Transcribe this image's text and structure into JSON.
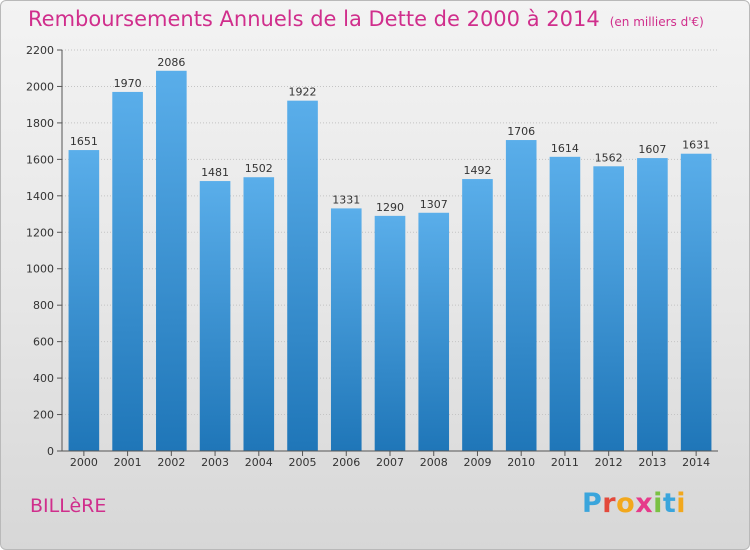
{
  "header": {
    "title": "Remboursements Annuels de la Dette de 2000 à 2014",
    "unit": "(en milliers d'€)"
  },
  "footer": {
    "commune": "BILLèRE",
    "logo_letters": [
      "P",
      "r",
      "o",
      "x",
      "i",
      "t",
      "i"
    ]
  },
  "colors": {
    "title": "#d02e8c",
    "bar_light": "#5aaeea",
    "bar_dark": "#1f76b8"
  },
  "chart_data": {
    "type": "bar",
    "title": "Remboursements Annuels de la Dette de 2000 à 2014",
    "xlabel": "",
    "ylabel": "",
    "categories": [
      "2000",
      "2001",
      "2002",
      "2003",
      "2004",
      "2005",
      "2006",
      "2007",
      "2008",
      "2009",
      "2010",
      "2011",
      "2012",
      "2013",
      "2014"
    ],
    "values": [
      1651,
      1970,
      2086,
      1481,
      1502,
      1922,
      1331,
      1290,
      1307,
      1492,
      1706,
      1614,
      1562,
      1607,
      1631
    ],
    "ylim": [
      0,
      2200
    ],
    "yticks": [
      0,
      200,
      400,
      600,
      800,
      1000,
      1200,
      1400,
      1600,
      1800,
      2000,
      2200
    ],
    "grid": true
  }
}
